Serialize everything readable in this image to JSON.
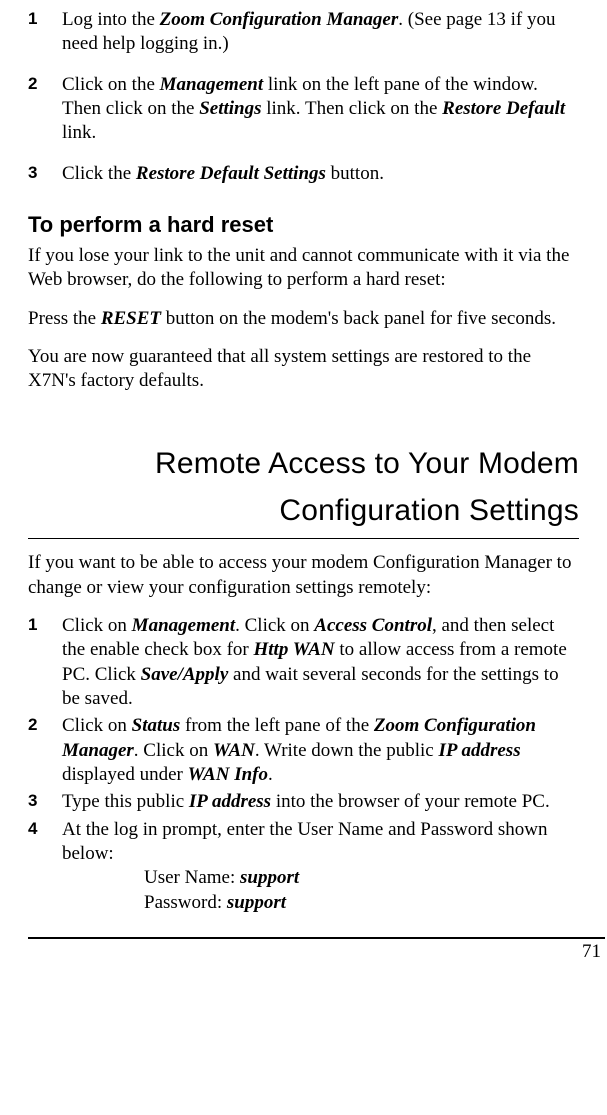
{
  "steps_a": [
    {
      "n": "1",
      "pre": "Log into the ",
      "bold1": "Zoom Configuration Manager",
      "post1": ". (See page 13 if you need help logging in.)"
    },
    {
      "n": "2",
      "pre": "Click on the ",
      "bold1": "Management",
      "mid1": " link on the left pane of the window. Then click on the ",
      "bold2": "Settings",
      "mid2": " link.  Then click on the ",
      "bold3": "Restore Default",
      "post": " link."
    },
    {
      "n": "3",
      "pre": "Click the ",
      "bold1": "Restore Default Settings",
      "post1": " button."
    }
  ],
  "hard_reset_heading": "To perform a hard reset",
  "hard_reset_p1": "If you lose your link to the unit and cannot communicate with it via the Web browser, do the following to perform a hard reset:",
  "hard_reset_press_pre": "Press the ",
  "hard_reset_press_bold": "RESET",
  "hard_reset_press_post": " button on the modem's back panel for five seconds.",
  "hard_reset_p3": "You are now guaranteed that all system settings are restored to the X7N's factory defaults.",
  "section_heading": "Remote Access to Your Modem Configuration Settings",
  "remote_intro": "If you want to be able to access your modem Configuration Manager to change or view your configuration settings remotely:",
  "steps_b": {
    "1": {
      "pre": "Click on ",
      "b1": "Management",
      "m1": ".  Click on ",
      "b2": "Access Control",
      "m2": ", and then select the enable check box for ",
      "b3": "Http WAN",
      "m3": " to allow access from a remote PC.  Click ",
      "b4": "Save/Apply",
      "post": " and wait several seconds for the settings to be saved."
    },
    "2": {
      "pre": "Click on ",
      "b1": "Status",
      "m1": " from the left pane of the ",
      "b2": "Zoom Configuration Manager",
      "m2": ".  Click on ",
      "b3": "WAN",
      "m3": ".  Write down the public ",
      "b4": "IP address",
      "m4": " displayed under ",
      "b5": "WAN Info",
      "post": "."
    },
    "3": {
      "pre": "Type this public ",
      "b1": "IP address",
      "post": " into the browser of your remote PC."
    },
    "4": {
      "text": "At the log in prompt, enter the User Name and Password shown below:"
    }
  },
  "cred_user_label": "User Name: ",
  "cred_user_value": "support",
  "cred_pass_label": "Password: ",
  "cred_pass_value": "support",
  "page_number": "71"
}
